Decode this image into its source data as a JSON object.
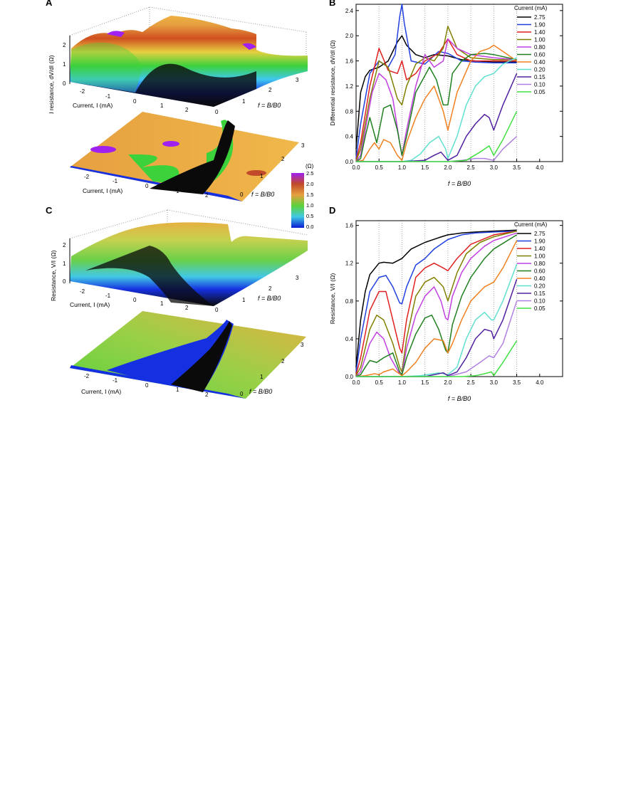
{
  "panels": {
    "a": "A",
    "b": "B",
    "c": "C",
    "d": "D"
  },
  "surface_a": {
    "zlabel": "Differential resistance, dV/dI (Ω)",
    "zticks": [
      "0",
      "1",
      "2"
    ],
    "xlabel": "Current, I (mA)",
    "xticks": [
      "-2",
      "-1",
      "0",
      "1",
      "2"
    ],
    "ylabel": "f = B/B0",
    "yticks": [
      "0",
      "1",
      "2",
      "3"
    ]
  },
  "map_a": {
    "xlabel": "Current, I (mA)",
    "xticks": [
      "-2",
      "-1",
      "0",
      "1",
      "2"
    ],
    "ylabel": "f = B/B0",
    "yticks": [
      "0",
      "1",
      "2",
      "3"
    ]
  },
  "colorbar": {
    "unit": "(Ω)",
    "ticks": [
      "2.5",
      "2.0",
      "1.5",
      "1.0",
      "0.5",
      "0.0"
    ],
    "colors": [
      "#a020f0",
      "#c04a2a",
      "#e6a040",
      "#5ad23c",
      "#41c8e6",
      "#0a1ad2"
    ]
  },
  "surface_c": {
    "zlabel": "Resistance, V/I (Ω)",
    "zticks": [
      "0",
      "1",
      "2"
    ],
    "xlabel": "Current, I (mA)",
    "xticks": [
      "-2",
      "-1",
      "0",
      "1",
      "2"
    ],
    "ylabel": "f = B/B0",
    "yticks": [
      "0",
      "1",
      "2",
      "3"
    ]
  },
  "map_c": {
    "xlabel": "Current, I (mA)",
    "xticks": [
      "-2",
      "-1",
      "0",
      "1",
      "2"
    ],
    "ylabel": "f = B/B0",
    "yticks": [
      "0",
      "1",
      "2",
      "3"
    ]
  },
  "chart_data": [
    {
      "type": "line",
      "id": "B",
      "xlabel": "f = B/B0",
      "ylabel": "Differential resistance, dV/dI (Ω)",
      "xlim": [
        0,
        4.5
      ],
      "ylim": [
        0,
        2.5
      ],
      "xticks": [
        "0.0",
        "0.5",
        "1.0",
        "1.5",
        "2.0",
        "2.5",
        "3.0",
        "3.5",
        "4.0"
      ],
      "yticks": [
        "0.0",
        "0.4",
        "0.8",
        "1.2",
        "1.6",
        "2.0",
        "2.4"
      ],
      "legend_title": "Current (mA)",
      "legend_position": "top-right",
      "series": [
        {
          "name": "2.75",
          "color": "#000000",
          "x": [
            0,
            0.1,
            0.2,
            0.3,
            0.5,
            0.7,
            0.9,
            1.0,
            1.1,
            1.3,
            1.5,
            1.7,
            2.0,
            2.3,
            2.6,
            3.0,
            3.5
          ],
          "y": [
            0.2,
            1.1,
            1.35,
            1.45,
            1.5,
            1.6,
            1.9,
            2.0,
            1.85,
            1.7,
            1.65,
            1.7,
            1.68,
            1.62,
            1.6,
            1.58,
            1.58
          ]
        },
        {
          "name": "1.90",
          "color": "#2040e0",
          "x": [
            0,
            0.1,
            0.3,
            0.5,
            0.7,
            0.85,
            0.95,
            1.0,
            1.05,
            1.2,
            1.5,
            1.8,
            2.0,
            2.3,
            2.6,
            3.0,
            3.5
          ],
          "y": [
            0.05,
            0.6,
            1.4,
            1.6,
            1.5,
            1.7,
            2.3,
            2.5,
            2.2,
            1.6,
            1.55,
            1.75,
            1.72,
            1.6,
            1.58,
            1.57,
            1.57
          ]
        },
        {
          "name": "1.40",
          "color": "#e02020",
          "x": [
            0,
            0.1,
            0.3,
            0.5,
            0.7,
            0.9,
            1.0,
            1.1,
            1.3,
            1.5,
            1.8,
            2.0,
            2.2,
            2.5,
            3.0,
            3.5
          ],
          "y": [
            0.02,
            0.3,
            1.2,
            1.8,
            1.45,
            1.4,
            1.6,
            1.3,
            1.4,
            1.6,
            1.72,
            1.95,
            1.7,
            1.6,
            1.6,
            1.6
          ]
        },
        {
          "name": "1.00",
          "color": "#808000",
          "x": [
            0,
            0.1,
            0.3,
            0.5,
            0.7,
            0.9,
            1.0,
            1.1,
            1.3,
            1.5,
            1.7,
            1.9,
            2.0,
            2.2,
            2.5,
            3.0,
            3.5
          ],
          "y": [
            0.01,
            0.2,
            1.0,
            1.6,
            1.5,
            1.0,
            0.9,
            1.2,
            1.55,
            1.65,
            1.6,
            1.8,
            2.15,
            1.8,
            1.65,
            1.62,
            1.62
          ]
        },
        {
          "name": "0.80",
          "color": "#c040e0",
          "x": [
            0,
            0.1,
            0.25,
            0.35,
            0.5,
            0.65,
            0.8,
            0.95,
            1.0,
            1.1,
            1.3,
            1.5,
            1.7,
            1.9,
            2.0,
            2.2,
            2.5,
            3.0,
            3.5
          ],
          "y": [
            0,
            0.1,
            0.7,
            1.1,
            1.4,
            1.3,
            1.0,
            0.3,
            0.1,
            0.5,
            1.2,
            1.7,
            1.5,
            1.6,
            1.95,
            1.8,
            1.7,
            1.65,
            1.62
          ]
        },
        {
          "name": "0.60",
          "color": "#208020",
          "x": [
            0,
            0.1,
            0.2,
            0.3,
            0.45,
            0.6,
            0.75,
            0.9,
            1.0,
            1.1,
            1.3,
            1.45,
            1.6,
            1.75,
            1.9,
            2.0,
            2.1,
            2.3,
            2.5,
            2.8,
            3.0,
            3.5
          ],
          "y": [
            0,
            0.05,
            0.4,
            0.7,
            0.3,
            0.85,
            0.9,
            0.5,
            0.1,
            0.4,
            1.1,
            1.3,
            1.5,
            1.3,
            0.9,
            0.9,
            1.4,
            1.6,
            1.7,
            1.72,
            1.7,
            1.62
          ]
        },
        {
          "name": "0.40",
          "color": "#f08020",
          "x": [
            0,
            0.15,
            0.3,
            0.4,
            0.5,
            0.6,
            0.75,
            0.9,
            1.0,
            1.1,
            1.3,
            1.5,
            1.7,
            1.9,
            2.0,
            2.2,
            2.5,
            2.7,
            2.9,
            3.0,
            3.2,
            3.5
          ],
          "y": [
            0,
            0.02,
            0.2,
            0.3,
            0.2,
            0.35,
            0.3,
            0.1,
            0.02,
            0.3,
            0.7,
            1.0,
            1.2,
            0.8,
            0.5,
            1.1,
            1.6,
            1.75,
            1.8,
            1.85,
            1.75,
            1.6
          ]
        },
        {
          "name": "0.20",
          "color": "#60e0d0",
          "x": [
            0,
            0.5,
            1.0,
            1.2,
            1.4,
            1.6,
            1.8,
            1.95,
            2.0,
            2.2,
            2.4,
            2.6,
            2.8,
            3.0,
            3.2,
            3.5
          ],
          "y": [
            0,
            0,
            0,
            0.02,
            0.12,
            0.3,
            0.4,
            0.2,
            0.05,
            0.4,
            0.9,
            1.2,
            1.35,
            1.4,
            1.55,
            1.65
          ]
        },
        {
          "name": "0.15",
          "color": "#5020a0",
          "x": [
            0,
            1.0,
            1.5,
            1.7,
            1.85,
            2.0,
            2.2,
            2.4,
            2.6,
            2.8,
            2.9,
            3.0,
            3.2,
            3.5
          ],
          "y": [
            0,
            0,
            0.02,
            0.1,
            0.15,
            0.02,
            0.1,
            0.4,
            0.6,
            0.75,
            0.7,
            0.5,
            0.9,
            1.4
          ]
        },
        {
          "name": "0.10",
          "color": "#b080e0",
          "x": [
            0,
            1.5,
            2.0,
            2.3,
            2.6,
            2.8,
            3.0,
            3.2,
            3.5
          ],
          "y": [
            0,
            0,
            0,
            0.02,
            0.05,
            0.05,
            0.02,
            0.2,
            0.4
          ]
        },
        {
          "name": "0.05",
          "color": "#40e040",
          "x": [
            0,
            2.0,
            2.4,
            2.7,
            2.9,
            3.0,
            3.2,
            3.5
          ],
          "y": [
            0,
            0,
            0.02,
            0.15,
            0.25,
            0.1,
            0.35,
            0.8
          ]
        }
      ]
    },
    {
      "type": "line",
      "id": "D",
      "xlabel": "f = B/B0",
      "ylabel": "Resistance, V/I (Ω)",
      "xlim": [
        0,
        4.5
      ],
      "ylim": [
        0,
        1.65
      ],
      "xticks": [
        "0.0",
        "0.5",
        "1.0",
        "1.5",
        "2.0",
        "2.5",
        "3.0",
        "3.5",
        "4.0"
      ],
      "yticks": [
        "0.0",
        "0.4",
        "0.8",
        "1.2",
        "1.6"
      ],
      "legend_title": "Current (mA)",
      "legend_position": "top-right",
      "series": [
        {
          "name": "2.75",
          "color": "#000000",
          "x": [
            0,
            0.1,
            0.2,
            0.3,
            0.5,
            0.6,
            0.8,
            1.0,
            1.2,
            1.5,
            1.8,
            2.0,
            2.3,
            2.6,
            3.0,
            3.5
          ],
          "y": [
            0.1,
            0.6,
            0.9,
            1.08,
            1.2,
            1.21,
            1.2,
            1.25,
            1.35,
            1.42,
            1.47,
            1.5,
            1.52,
            1.53,
            1.54,
            1.55
          ]
        },
        {
          "name": "1.90",
          "color": "#2040e0",
          "x": [
            0,
            0.1,
            0.3,
            0.5,
            0.65,
            0.8,
            0.95,
            1.0,
            1.1,
            1.3,
            1.5,
            1.7,
            2.0,
            2.3,
            2.6,
            3.0,
            3.5
          ],
          "y": [
            0.05,
            0.4,
            0.9,
            1.05,
            1.07,
            0.95,
            0.78,
            0.77,
            0.95,
            1.18,
            1.25,
            1.35,
            1.45,
            1.5,
            1.52,
            1.53,
            1.54
          ]
        },
        {
          "name": "1.40",
          "color": "#e02020",
          "x": [
            0,
            0.1,
            0.3,
            0.5,
            0.65,
            0.8,
            0.95,
            1.0,
            1.1,
            1.3,
            1.5,
            1.7,
            1.9,
            2.0,
            2.2,
            2.5,
            3.0,
            3.5
          ],
          "y": [
            0.02,
            0.2,
            0.7,
            0.9,
            0.9,
            0.6,
            0.3,
            0.25,
            0.6,
            1.05,
            1.15,
            1.2,
            1.15,
            1.12,
            1.25,
            1.4,
            1.5,
            1.54
          ]
        },
        {
          "name": "1.00",
          "color": "#808000",
          "x": [
            0,
            0.1,
            0.3,
            0.45,
            0.6,
            0.8,
            0.95,
            1.0,
            1.1,
            1.3,
            1.5,
            1.7,
            1.9,
            2.0,
            2.2,
            2.4,
            2.7,
            3.0,
            3.5
          ],
          "y": [
            0.01,
            0.1,
            0.5,
            0.65,
            0.6,
            0.35,
            0.1,
            0.05,
            0.4,
            0.85,
            1.0,
            1.05,
            0.95,
            0.8,
            1.1,
            1.3,
            1.42,
            1.48,
            1.54
          ]
        },
        {
          "name": "0.80",
          "color": "#c040e0",
          "x": [
            0,
            0.1,
            0.3,
            0.45,
            0.6,
            0.75,
            0.95,
            1.0,
            1.1,
            1.3,
            1.5,
            1.7,
            1.85,
            1.95,
            2.0,
            2.1,
            2.3,
            2.5,
            2.8,
            3.0,
            3.5
          ],
          "y": [
            0,
            0.05,
            0.35,
            0.47,
            0.4,
            0.2,
            0.03,
            0.02,
            0.3,
            0.65,
            0.85,
            0.95,
            0.8,
            0.62,
            0.6,
            0.85,
            1.1,
            1.25,
            1.38,
            1.44,
            1.52
          ]
        },
        {
          "name": "0.60",
          "color": "#208020",
          "x": [
            0,
            0.1,
            0.2,
            0.3,
            0.45,
            0.6,
            0.8,
            0.95,
            1.0,
            1.1,
            1.3,
            1.5,
            1.65,
            1.8,
            1.95,
            2.0,
            2.1,
            2.3,
            2.5,
            2.8,
            3.0,
            3.5
          ],
          "y": [
            0,
            0.02,
            0.1,
            0.17,
            0.15,
            0.2,
            0.25,
            0.05,
            0.02,
            0.2,
            0.45,
            0.62,
            0.65,
            0.5,
            0.28,
            0.25,
            0.55,
            0.85,
            1.05,
            1.25,
            1.35,
            1.5
          ]
        },
        {
          "name": "0.40",
          "color": "#f08020",
          "x": [
            0,
            0.2,
            0.4,
            0.5,
            0.6,
            0.8,
            1.0,
            1.1,
            1.3,
            1.5,
            1.7,
            1.9,
            2.0,
            2.1,
            2.3,
            2.5,
            2.8,
            3.0,
            3.2,
            3.5
          ],
          "y": [
            0,
            0.01,
            0.03,
            0.02,
            0.05,
            0.08,
            0.01,
            0.05,
            0.15,
            0.3,
            0.4,
            0.38,
            0.25,
            0.35,
            0.6,
            0.8,
            0.95,
            1.0,
            1.15,
            1.44
          ]
        },
        {
          "name": "0.20",
          "color": "#60e0d0",
          "x": [
            0,
            1.0,
            1.4,
            1.8,
            2.0,
            2.2,
            2.4,
            2.6,
            2.8,
            2.95,
            3.0,
            3.2,
            3.5
          ],
          "y": [
            0,
            0,
            0.01,
            0.04,
            0.02,
            0.1,
            0.4,
            0.6,
            0.68,
            0.6,
            0.6,
            0.8,
            1.19
          ]
        },
        {
          "name": "0.15",
          "color": "#5020a0",
          "x": [
            0,
            1.5,
            1.9,
            2.0,
            2.2,
            2.4,
            2.6,
            2.8,
            2.95,
            3.0,
            3.2,
            3.5
          ],
          "y": [
            0,
            0,
            0.04,
            0.01,
            0.05,
            0.2,
            0.4,
            0.5,
            0.48,
            0.4,
            0.6,
            1.03
          ]
        },
        {
          "name": "0.10",
          "color": "#b080e0",
          "x": [
            0,
            2.0,
            2.4,
            2.7,
            2.9,
            3.0,
            3.2,
            3.5
          ],
          "y": [
            0,
            0,
            0.05,
            0.15,
            0.22,
            0.2,
            0.35,
            0.8
          ]
        },
        {
          "name": "0.05",
          "color": "#40e040",
          "x": [
            0,
            2.3,
            2.6,
            2.8,
            2.95,
            3.0,
            3.2,
            3.5
          ],
          "y": [
            0,
            0,
            0.01,
            0.03,
            0.05,
            0.01,
            0.15,
            0.38
          ]
        }
      ]
    }
  ]
}
